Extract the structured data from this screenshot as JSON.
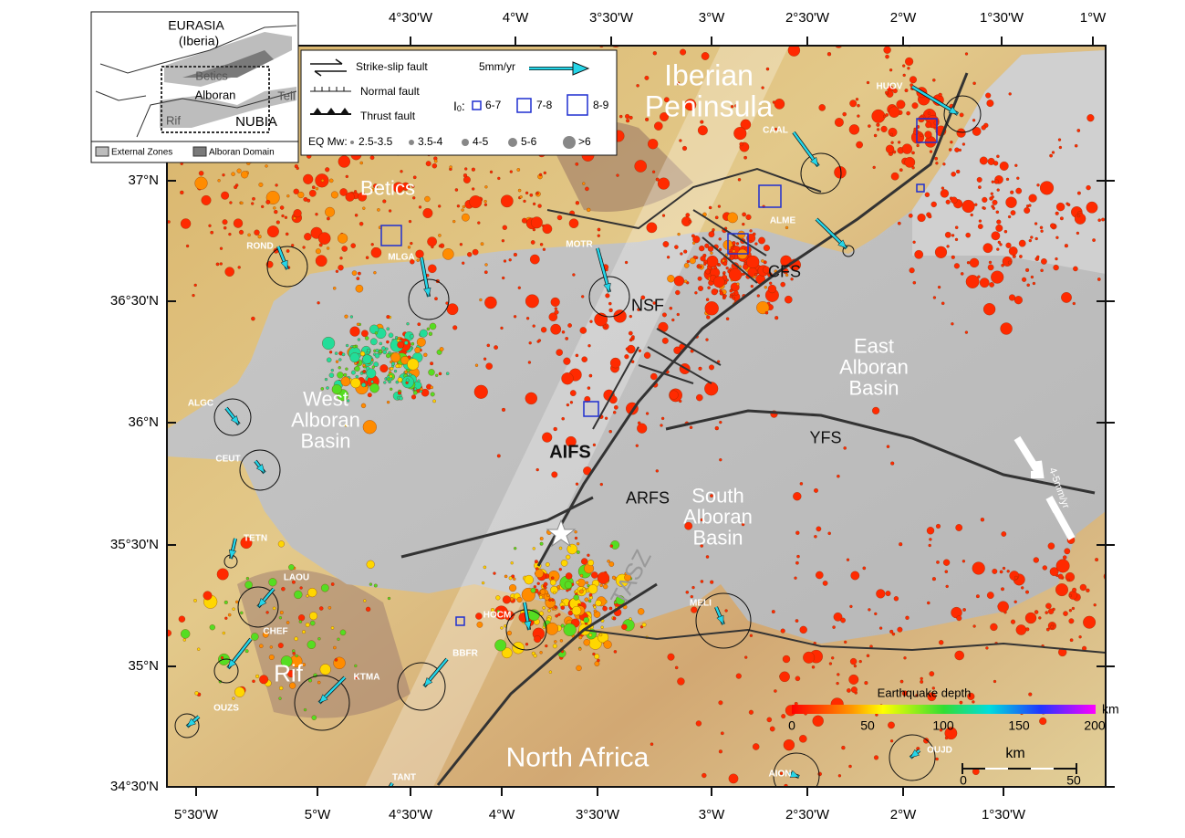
{
  "axes": {
    "top": [
      "4°30'W",
      "4°W",
      "3°30'W",
      "3°W",
      "2°30'W",
      "2°W",
      "1°30'W",
      "1°W"
    ],
    "bottom": [
      "5°30'W",
      "5°W",
      "4°30'W",
      "4°W",
      "3°30'W",
      "3°W",
      "2°30'W",
      "2°W",
      "1°30'W"
    ],
    "left": [
      "37°N",
      "36°30'N",
      "36°N",
      "35°30'N",
      "35°N",
      "34°30'N"
    ]
  },
  "inset": {
    "labels": [
      "EURASIA",
      "(Iberia)",
      "Betics",
      "Alboran",
      "Tell",
      "Rif",
      "NUBIA"
    ],
    "legend": [
      "External Zones",
      "Alboran Domain"
    ]
  },
  "legend": {
    "faults": [
      "Strike-slip fault",
      "Normal fault",
      "Thrust fault"
    ],
    "velocity": "5mm/yr",
    "intensity_label": "I",
    "intensity_sub": "0",
    "intensity_colon": ":",
    "intensity": [
      "6-7",
      "7-8",
      "8-9"
    ],
    "magnitude_label": "EQ Mw:",
    "magnitude": [
      "2.5-3.5",
      "3.5-4",
      "4-5",
      "5-6",
      ">6"
    ]
  },
  "regions": [
    "Iberian Peninsula",
    "Betics",
    "West Alboran Basin",
    "East Alboran Basin",
    "South Alboran Basin",
    "North Africa",
    "Rif"
  ],
  "faults": [
    "AIFS",
    "YFS",
    "ARFS",
    "NSF",
    "CFS",
    "TASZ"
  ],
  "convergence": "4-5mm/yr",
  "stations": [
    "HUOV",
    "CAAL",
    "ALME",
    "MOTR",
    "ROND",
    "MLGA",
    "ALGC",
    "CEUT",
    "TETN",
    "LAOU",
    "CHEF",
    "KTMA",
    "OUZS",
    "BBFR",
    "HOCM",
    "MELI",
    "AION",
    "OUJD",
    "TANT"
  ],
  "colorbar": {
    "title": "Earthquake depth",
    "unit": "km",
    "ticks": [
      "0",
      "50",
      "100",
      "150",
      "200"
    ]
  },
  "scale": {
    "unit": "km",
    "ticks": [
      "0",
      "50"
    ]
  }
}
